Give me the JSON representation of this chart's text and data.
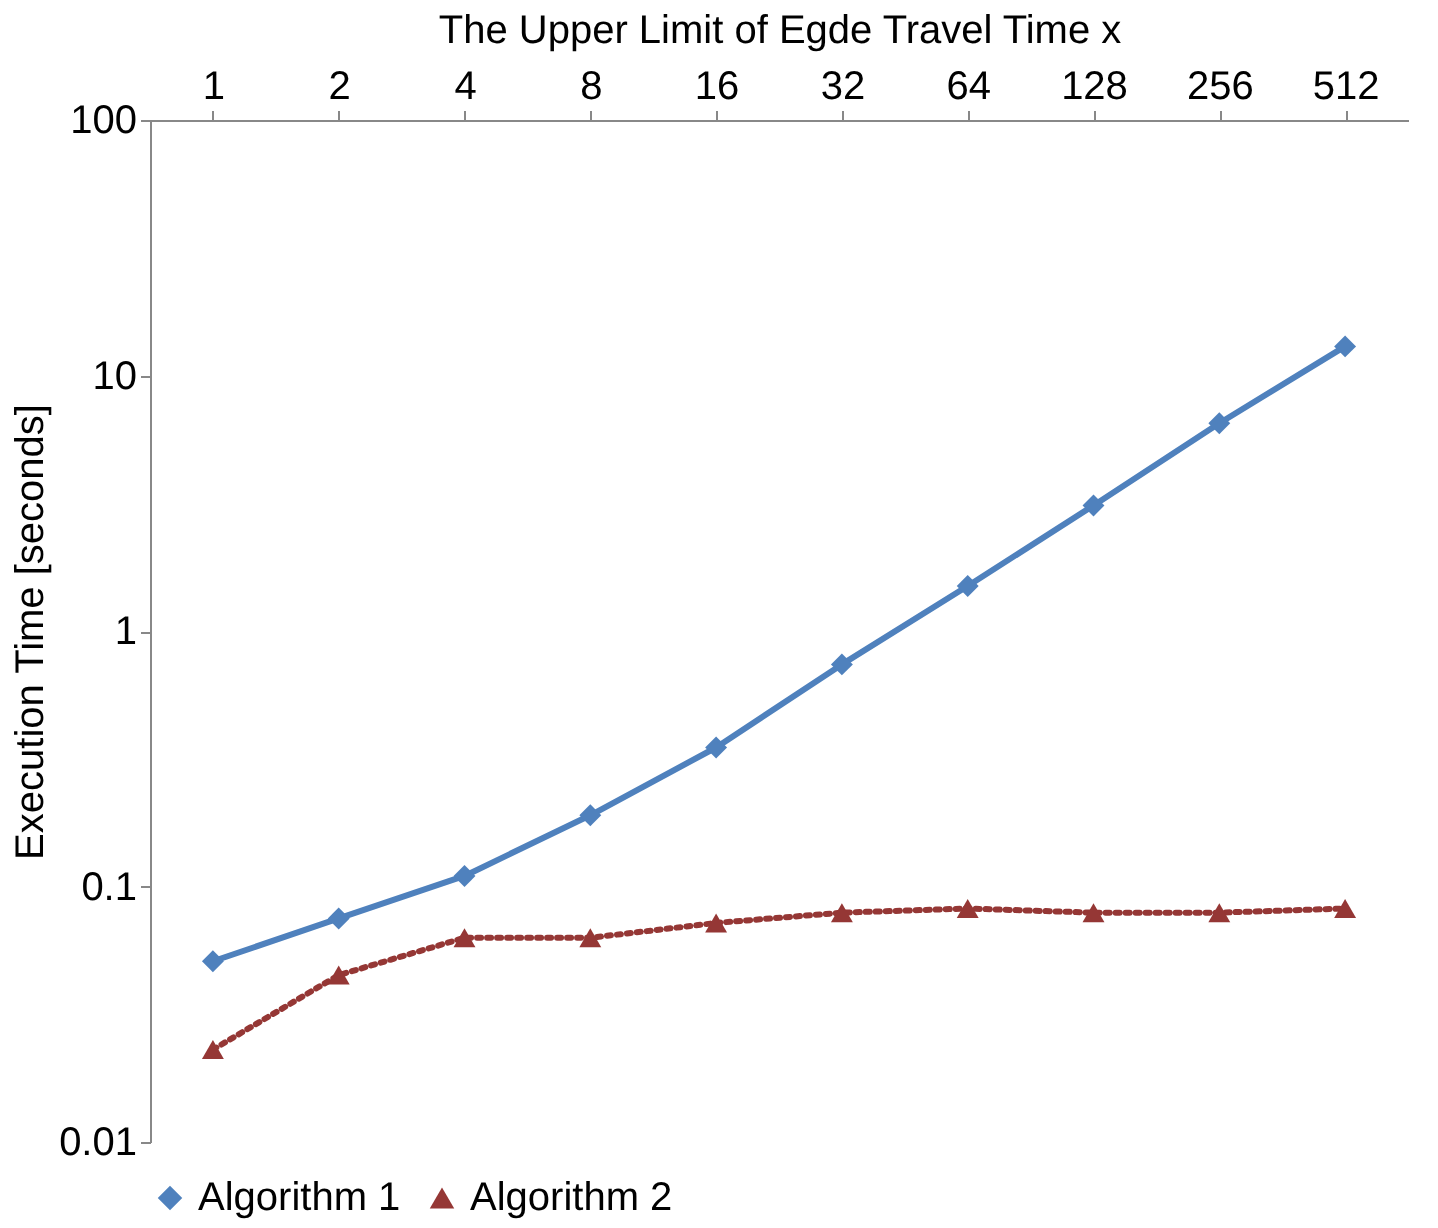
{
  "chart_data": {
    "type": "line",
    "xlabel": "The Upper Limit of Egde Travel Time   x",
    "ylabel": "Execution Time [seconds]",
    "categories": [
      "1",
      "2",
      "4",
      "8",
      "16",
      "32",
      "64",
      "128",
      "256",
      "512"
    ],
    "series": [
      {
        "name": "Algorithm 1",
        "color": "#4f81bd",
        "marker": "diamond",
        "line_style": "solid",
        "values": [
          0.051,
          0.075,
          0.11,
          0.19,
          0.35,
          0.74,
          1.5,
          3.1,
          6.5,
          13
        ]
      },
      {
        "name": "Algorithm 2",
        "color": "#953735",
        "marker": "triangle",
        "line_style": "dotted",
        "values": [
          0.023,
          0.045,
          0.063,
          0.063,
          0.072,
          0.079,
          0.082,
          0.079,
          0.079,
          0.082
        ]
      }
    ],
    "log": "y",
    "ylim": [
      0.01,
      100
    ],
    "yticks": [
      0.01,
      0.1,
      1,
      10,
      100
    ],
    "grid": false,
    "legend": "bottom"
  }
}
